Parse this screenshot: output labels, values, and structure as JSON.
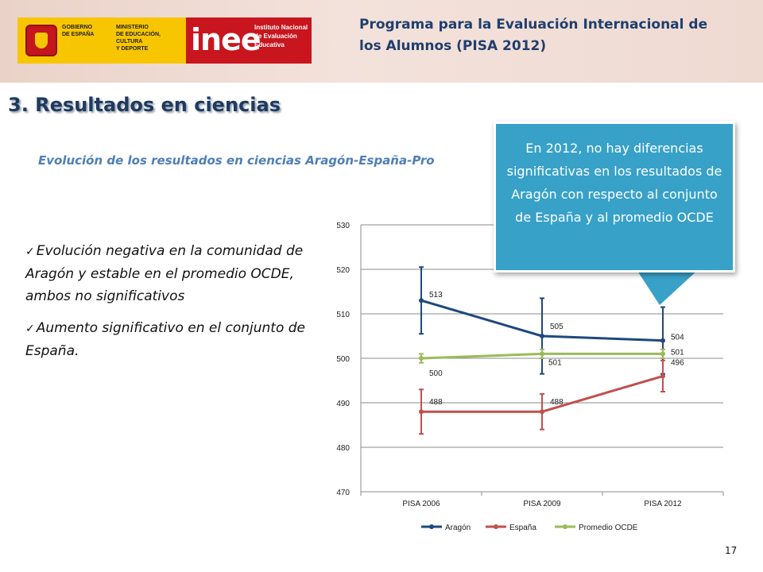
{
  "header": {
    "gov_text": "GOBIERNO\nDE ESPAÑA",
    "ministry_text": "MINISTERIO\nDE EDUCACIÓN, CULTURA\nY DEPORTE",
    "inee_word": "inee",
    "inee_subtitle": "Instituto Nacional\nde Evaluación\nEducativa",
    "program_title": "Programa para la Evaluación Internacional de los Alumnos (PISA 2012)"
  },
  "slide": {
    "title": "3. Resultados en ciencias",
    "subtitle": "Evolución de los resultados en ciencias Aragón-España-Pro",
    "bullets": [
      "Evolución negativa en la comunidad de Aragón y estable en el promedio OCDE, ambos no significativos",
      "Aumento significativo en el conjunto de España."
    ],
    "callout": "En 2012, no hay diferencias significativas en los resultados de Aragón con respecto al conjunto de España y al promedio OCDE",
    "page_number": "17"
  },
  "colors": {
    "aragon": "#1f497d",
    "espana": "#c0504d",
    "ocde": "#9bbb59",
    "title": "#1f3a5f",
    "subtitle": "#4f7fb7",
    "callout_bg": "#38a1c8"
  },
  "chart_data": {
    "type": "line",
    "categories": [
      "PISA 2006",
      "PISA 2009",
      "PISA 2012"
    ],
    "ylim": [
      470,
      530
    ],
    "yticks": [
      470,
      480,
      490,
      500,
      510,
      520,
      530
    ],
    "grid": true,
    "legend_position": "bottom",
    "series": [
      {
        "name": "Aragón",
        "color": "#1f497d",
        "values": [
          513,
          505,
          504
        ],
        "error_low": [
          505.5,
          496.5,
          496.5
        ],
        "error_high": [
          520.5,
          513.5,
          511.5
        ],
        "labels": [
          "513",
          "505",
          "504"
        ]
      },
      {
        "name": "España",
        "color": "#c0504d",
        "values": [
          488,
          488,
          496
        ],
        "error_low": [
          483,
          484,
          492.5
        ],
        "error_high": [
          493,
          492,
          499.5
        ],
        "labels": [
          "488",
          "488",
          "496"
        ]
      },
      {
        "name": "Promedio OCDE",
        "color": "#9bbb59",
        "values": [
          500,
          501,
          501
        ],
        "error_low": [
          499,
          500,
          500
        ],
        "error_high": [
          501,
          502,
          502
        ],
        "labels": [
          "500",
          "501",
          "501"
        ]
      }
    ]
  }
}
